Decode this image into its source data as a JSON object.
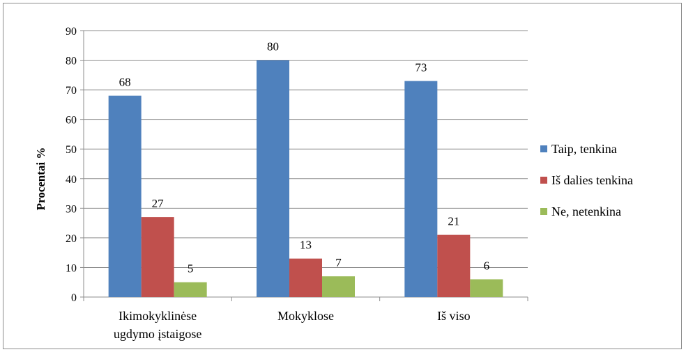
{
  "chart_data": {
    "type": "bar",
    "categories": [
      [
        "Ikimokyklinėse",
        "ugdymo įstaigose"
      ],
      [
        "Mokyklose"
      ],
      [
        "Iš viso"
      ]
    ],
    "series": [
      {
        "name": "Taip, tenkina",
        "color": "#4f81bd",
        "values": [
          68,
          80,
          73
        ],
        "labels": [
          "68",
          "80",
          "73"
        ]
      },
      {
        "name": "Iš dalies tenkina",
        "color": "#c0504d",
        "values": [
          27,
          13,
          21
        ],
        "labels": [
          "27",
          "13",
          "21"
        ]
      },
      {
        "name": "Ne, netenkina",
        "color": "#9bbb59",
        "values": [
          5,
          7,
          6
        ],
        "labels": [
          "5",
          "7",
          "6"
        ]
      }
    ],
    "ylabel": "Procentai %",
    "xlabel": "",
    "title": "",
    "ylim": [
      0,
      90
    ],
    "yticks": [
      0,
      10,
      20,
      30,
      40,
      50,
      60,
      70,
      80,
      90
    ],
    "grid": true,
    "legend_position": "right"
  }
}
